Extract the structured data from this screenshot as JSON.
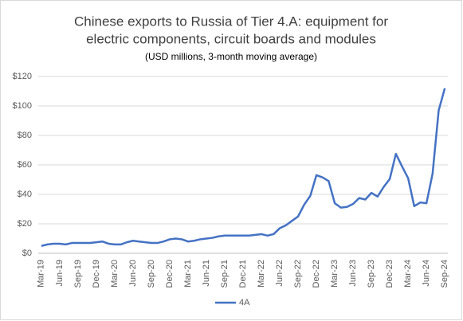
{
  "chart_data": {
    "type": "line",
    "title": [
      "Chinese exports to Russia of Tier 4.A: equipment for",
      "electric components, circuit boards and modules"
    ],
    "subtitle": "(USD millions, 3-month moving average)",
    "categories": [
      "Mar-19",
      null,
      null,
      "Jun-19",
      null,
      null,
      "Sep-19",
      null,
      null,
      "Dec-19",
      null,
      null,
      "Mar-20",
      null,
      null,
      "Jun-20",
      null,
      null,
      "Sep-20",
      null,
      null,
      "Dec-20",
      null,
      null,
      "Mar-21",
      null,
      null,
      "Jun-21",
      null,
      null,
      "Sep-21",
      null,
      null,
      "Dec-21",
      null,
      null,
      "Mar-22",
      null,
      null,
      "Jun-22",
      null,
      null,
      "Sep-22",
      null,
      null,
      "Dec-22",
      null,
      null,
      "Mar-23",
      null,
      null,
      "Jun-23",
      null,
      null,
      "Sep-23",
      null,
      null,
      "Dec-23",
      null,
      null,
      "Mar-24",
      null,
      null,
      "Jun-24",
      null,
      null,
      "Sep-24"
    ],
    "series": [
      {
        "name": "4A",
        "color": "#4472c4",
        "values": [
          5,
          6,
          6.5,
          6.5,
          6,
          7,
          7,
          7,
          7,
          7.5,
          8,
          6.5,
          6,
          6,
          7.5,
          8.5,
          8,
          7.5,
          7,
          7,
          8,
          9.5,
          10,
          9.5,
          8,
          8.5,
          9.5,
          10,
          10.5,
          11.5,
          12,
          12,
          12,
          12,
          12,
          12.5,
          13,
          12,
          13,
          17,
          19,
          22,
          25,
          33,
          39,
          53,
          51.5,
          49,
          34,
          31,
          31.5,
          33.5,
          37.5,
          36.5,
          41,
          38.5,
          45,
          50.5,
          67.5,
          59,
          51,
          32,
          34.5,
          34,
          54,
          97,
          112
        ]
      }
    ],
    "ylim": [
      0,
      120
    ],
    "yticks": [
      {
        "value": 0,
        "label": "$0"
      },
      {
        "value": 20,
        "label": "$20"
      },
      {
        "value": 40,
        "label": "$40"
      },
      {
        "value": 60,
        "label": "$60"
      },
      {
        "value": 80,
        "label": "$80"
      },
      {
        "value": 100,
        "label": "$100"
      },
      {
        "value": 120,
        "label": "$120"
      }
    ],
    "grid": true,
    "legend": "bottom"
  }
}
